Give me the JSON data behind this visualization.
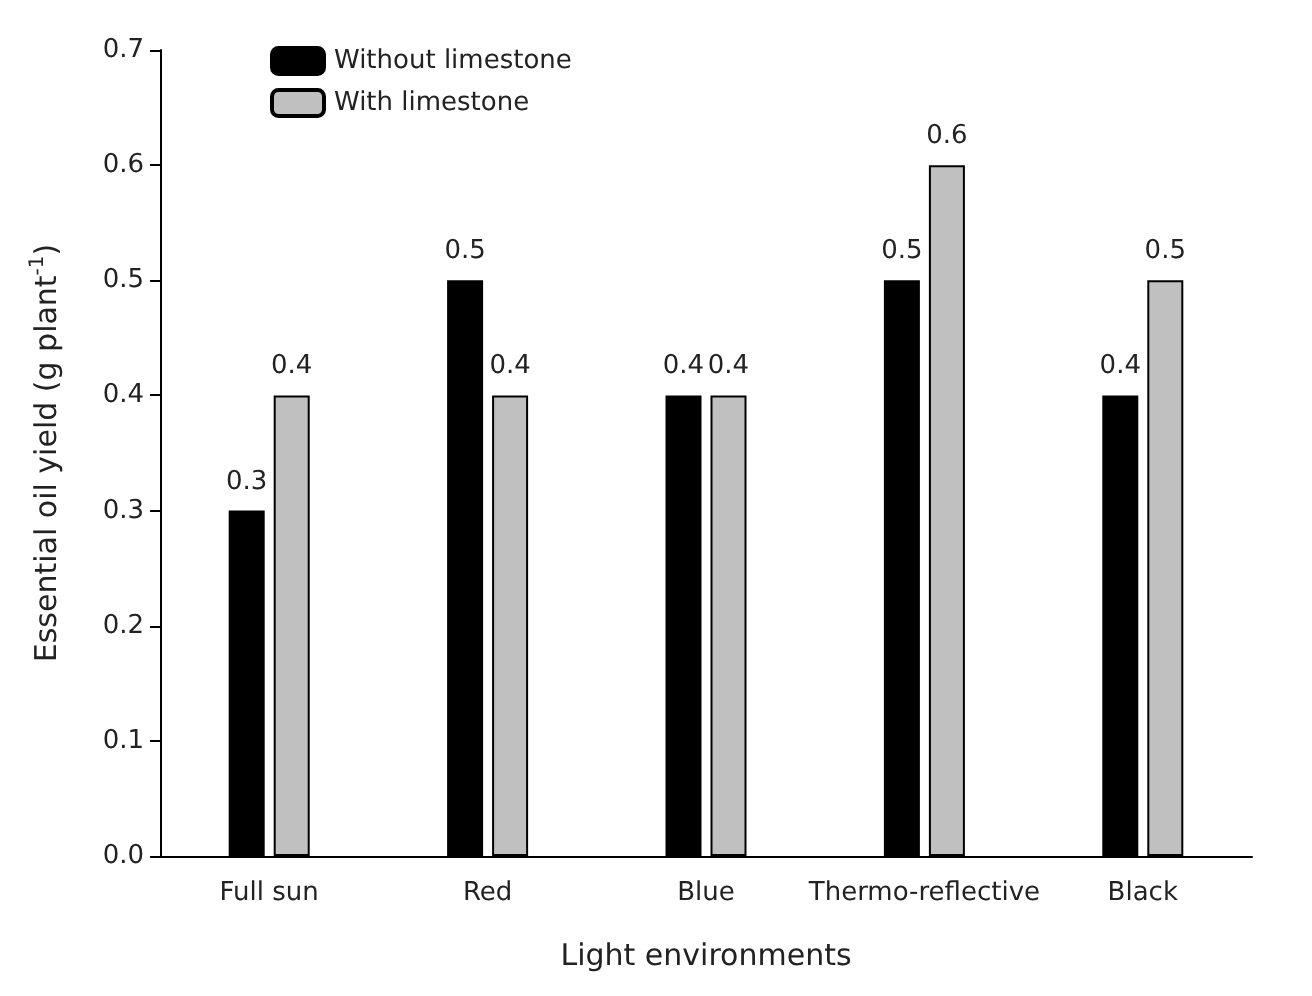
{
  "chart_data": {
    "type": "bar",
    "xlabel": "Light environments",
    "ylabel": "Essential oil yield (g plant$^{-1}$)",
    "categories": [
      "Full sun",
      "Red",
      "Blue",
      "Thermo-reflective",
      "Black"
    ],
    "series": [
      {
        "name": "Without limestone",
        "color": "#000000",
        "values": [
          0.3,
          0.5,
          0.4,
          0.5,
          0.4
        ]
      },
      {
        "name": "With limestone",
        "color": "#c0c0c0",
        "values": [
          0.4,
          0.4,
          0.4,
          0.6,
          0.5
        ]
      }
    ],
    "ylim": [
      0,
      0.7
    ],
    "yticks": [
      {
        "value": 0,
        "label": "0.0"
      },
      {
        "value": 0.1,
        "label": "0.1"
      },
      {
        "value": 0.2,
        "label": "0.2"
      },
      {
        "value": 0.3,
        "label": "0.3"
      },
      {
        "value": 0.4,
        "label": "0.4"
      },
      {
        "value": 0.5,
        "label": "0.5"
      },
      {
        "value": 0.6,
        "label": "0.6"
      },
      {
        "value": 0.7,
        "label": "0.7"
      }
    ],
    "data_labels": true,
    "grid": false,
    "legend": "top left"
  }
}
